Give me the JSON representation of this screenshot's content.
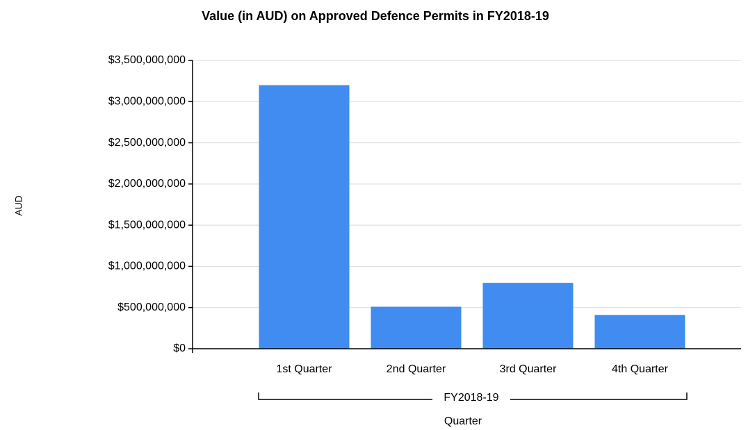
{
  "chart_data": {
    "type": "bar",
    "title": "Value (in AUD) on Approved Defence Permits in FY2018-19",
    "y_label": "AUD",
    "x_label": "Quarter",
    "group_label": "FY2018-19",
    "categories": [
      "1st Quarter",
      "2nd Quarter",
      "3rd Quarter",
      "4th Quarter"
    ],
    "values": [
      3200000000,
      510000000,
      800000000,
      410000000
    ],
    "color": "#418cf0",
    "ylim": [
      0,
      3500000000
    ],
    "yticks": [
      0,
      {
        "value": 500000000,
        "label": "$500,000,000"
      },
      {
        "value": 1000000000,
        "label": "$1,000,000,000"
      },
      {
        "value": 1500000000,
        "label": "$1,500,000,000"
      },
      {
        "value": 2000000000,
        "label": "$2,000,000,000"
      },
      {
        "value": 2500000000,
        "label": "$2,500,000,000"
      },
      {
        "value": 3000000000,
        "label": "$3,000,000,000"
      },
      {
        "value": 3500000000,
        "label": "$3,500,000,000"
      }
    ],
    "ytick_zero_label": "$0",
    "grid": true
  }
}
